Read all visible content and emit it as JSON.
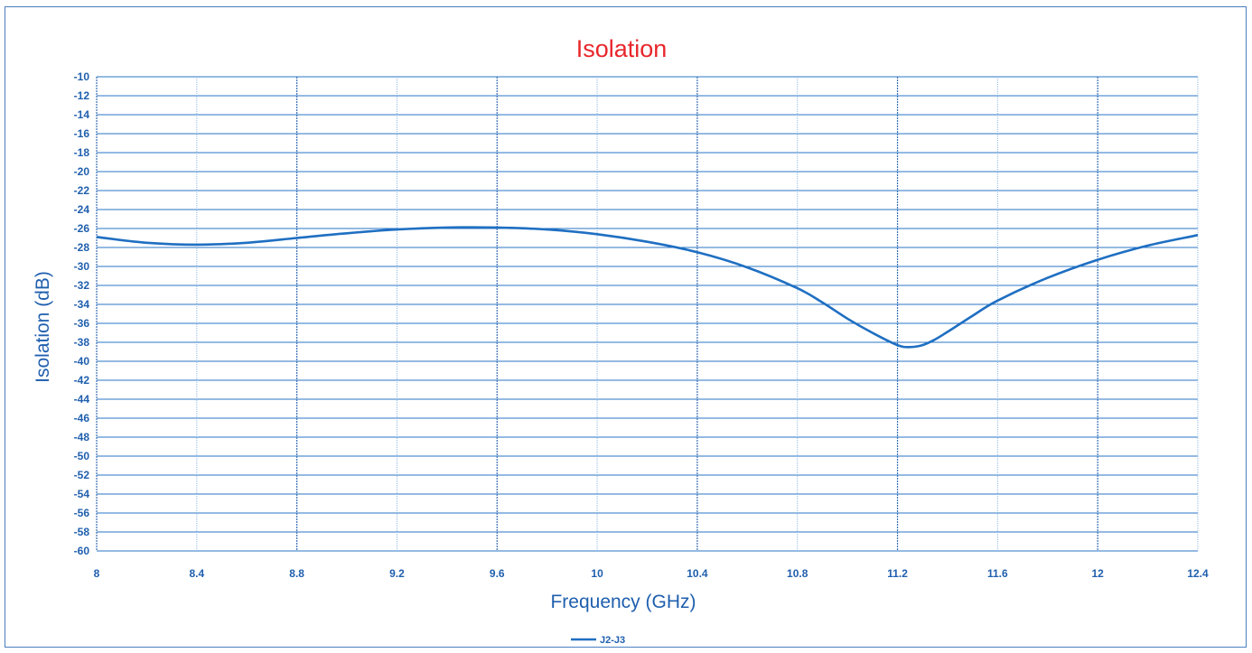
{
  "chart_data": {
    "type": "line",
    "title": "Isolation",
    "xlabel": "Frequency (GHz)",
    "ylabel": "Isolation (dB)",
    "xlim": [
      8,
      12.4
    ],
    "ylim": [
      -60,
      -10
    ],
    "x_ticks": [
      "8",
      "8.4",
      "8.8",
      "9.2",
      "9.6",
      "10",
      "10.4",
      "10.8",
      "11.2",
      "11.6",
      "12",
      "12.4"
    ],
    "y_ticks": [
      "-10",
      "-12",
      "-14",
      "-16",
      "-18",
      "-20",
      "-22",
      "-24",
      "-26",
      "-28",
      "-30",
      "-32",
      "-34",
      "-36",
      "-38",
      "-40",
      "-42",
      "-44",
      "-46",
      "-48",
      "-50",
      "-52",
      "-54",
      "-56",
      "-58",
      "-60"
    ],
    "grid": true,
    "legend_position": "bottom-center",
    "series": [
      {
        "name": "J2-J3",
        "color": "#1f6fc2",
        "x": [
          8.0,
          8.2,
          8.4,
          8.6,
          8.8,
          9.0,
          9.2,
          9.4,
          9.6,
          9.8,
          10.0,
          10.2,
          10.4,
          10.6,
          10.8,
          10.9,
          11.0,
          11.1,
          11.2,
          11.25,
          11.3,
          11.35,
          11.4,
          11.5,
          11.6,
          11.8,
          12.0,
          12.2,
          12.4
        ],
        "y": [
          -26.9,
          -27.5,
          -27.7,
          -27.5,
          -27.0,
          -26.5,
          -26.1,
          -25.9,
          -25.9,
          -26.1,
          -26.6,
          -27.4,
          -28.5,
          -30.1,
          -32.3,
          -33.8,
          -35.5,
          -37.0,
          -38.3,
          -38.5,
          -38.3,
          -37.7,
          -36.9,
          -35.2,
          -33.6,
          -31.2,
          -29.3,
          -27.8,
          -26.7
        ]
      }
    ]
  }
}
